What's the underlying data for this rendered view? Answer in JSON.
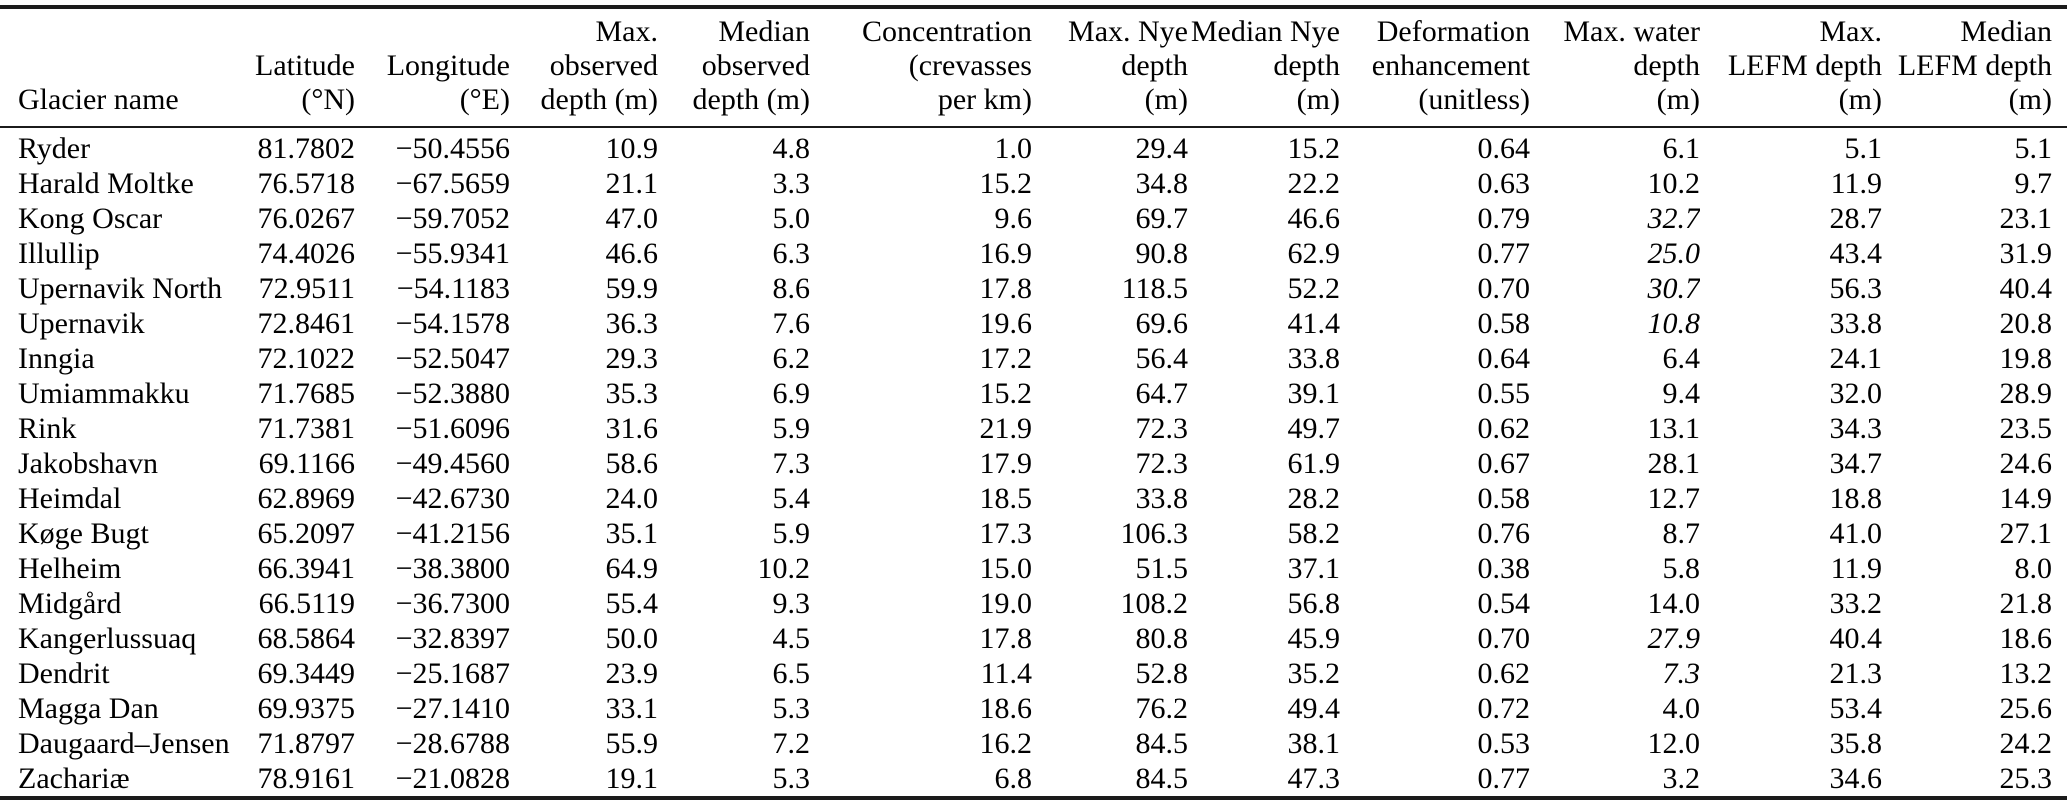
{
  "table": {
    "columns": [
      {
        "key": "name",
        "lines": [
          "Glacier name"
        ],
        "align": "left"
      },
      {
        "key": "lat",
        "lines": [
          "Latitude",
          "(°N)"
        ],
        "align": "right"
      },
      {
        "key": "lon",
        "lines": [
          "Longitude",
          "(°E)"
        ],
        "align": "right"
      },
      {
        "key": "max_obs",
        "lines": [
          "Max.",
          "observed",
          "depth (m)"
        ],
        "align": "right"
      },
      {
        "key": "med_obs",
        "lines": [
          "Median",
          "observed",
          "depth (m)"
        ],
        "align": "right"
      },
      {
        "key": "conc",
        "lines": [
          "Concentration",
          "(crevasses",
          "per km)"
        ],
        "align": "right"
      },
      {
        "key": "max_nye",
        "lines": [
          "Max. Nye",
          "depth",
          "(m)"
        ],
        "align": "right"
      },
      {
        "key": "med_nye",
        "lines": [
          "Median Nye",
          "depth",
          "(m)"
        ],
        "align": "right"
      },
      {
        "key": "def_enh",
        "lines": [
          "Deformation",
          "enhancement",
          "(unitless)"
        ],
        "align": "right"
      },
      {
        "key": "max_water",
        "lines": [
          "Max. water",
          "depth",
          "(m)"
        ],
        "align": "right"
      },
      {
        "key": "max_lefm",
        "lines": [
          "Max.",
          "LEFM depth",
          "(m)"
        ],
        "align": "right"
      },
      {
        "key": "med_lefm",
        "lines": [
          "Median",
          "LEFM depth",
          "(m)"
        ],
        "align": "right"
      }
    ],
    "rows": [
      {
        "name": "Ryder",
        "lat": "81.7802",
        "lon": "−50.4556",
        "max_obs": "10.9",
        "med_obs": "4.8",
        "conc": "1.0",
        "max_nye": "29.4",
        "med_nye": "15.2",
        "def_enh": "0.64",
        "max_water": "6.1",
        "max_lefm": "5.1",
        "med_lefm": "5.1",
        "water_italic": false
      },
      {
        "name": "Harald Moltke",
        "lat": "76.5718",
        "lon": "−67.5659",
        "max_obs": "21.1",
        "med_obs": "3.3",
        "conc": "15.2",
        "max_nye": "34.8",
        "med_nye": "22.2",
        "def_enh": "0.63",
        "max_water": "10.2",
        "max_lefm": "11.9",
        "med_lefm": "9.7",
        "water_italic": false
      },
      {
        "name": "Kong Oscar",
        "lat": "76.0267",
        "lon": "−59.7052",
        "max_obs": "47.0",
        "med_obs": "5.0",
        "conc": "9.6",
        "max_nye": "69.7",
        "med_nye": "46.6",
        "def_enh": "0.79",
        "max_water": "32.7",
        "max_lefm": "28.7",
        "med_lefm": "23.1",
        "water_italic": true
      },
      {
        "name": "Illullip",
        "lat": "74.4026",
        "lon": "−55.9341",
        "max_obs": "46.6",
        "med_obs": "6.3",
        "conc": "16.9",
        "max_nye": "90.8",
        "med_nye": "62.9",
        "def_enh": "0.77",
        "max_water": "25.0",
        "max_lefm": "43.4",
        "med_lefm": "31.9",
        "water_italic": true
      },
      {
        "name": "Upernavik North",
        "lat": "72.9511",
        "lon": "−54.1183",
        "max_obs": "59.9",
        "med_obs": "8.6",
        "conc": "17.8",
        "max_nye": "118.5",
        "med_nye": "52.2",
        "def_enh": "0.70",
        "max_water": "30.7",
        "max_lefm": "56.3",
        "med_lefm": "40.4",
        "water_italic": true
      },
      {
        "name": "Upernavik",
        "lat": "72.8461",
        "lon": "−54.1578",
        "max_obs": "36.3",
        "med_obs": "7.6",
        "conc": "19.6",
        "max_nye": "69.6",
        "med_nye": "41.4",
        "def_enh": "0.58",
        "max_water": "10.8",
        "max_lefm": "33.8",
        "med_lefm": "20.8",
        "water_italic": true
      },
      {
        "name": "Inngia",
        "lat": "72.1022",
        "lon": "−52.5047",
        "max_obs": "29.3",
        "med_obs": "6.2",
        "conc": "17.2",
        "max_nye": "56.4",
        "med_nye": "33.8",
        "def_enh": "0.64",
        "max_water": "6.4",
        "max_lefm": "24.1",
        "med_lefm": "19.8",
        "water_italic": false
      },
      {
        "name": "Umiammakku",
        "lat": "71.7685",
        "lon": "−52.3880",
        "max_obs": "35.3",
        "med_obs": "6.9",
        "conc": "15.2",
        "max_nye": "64.7",
        "med_nye": "39.1",
        "def_enh": "0.55",
        "max_water": "9.4",
        "max_lefm": "32.0",
        "med_lefm": "28.9",
        "water_italic": false
      },
      {
        "name": "Rink",
        "lat": "71.7381",
        "lon": "−51.6096",
        "max_obs": "31.6",
        "med_obs": "5.9",
        "conc": "21.9",
        "max_nye": "72.3",
        "med_nye": "49.7",
        "def_enh": "0.62",
        "max_water": "13.1",
        "max_lefm": "34.3",
        "med_lefm": "23.5",
        "water_italic": false
      },
      {
        "name": "Jakobshavn",
        "lat": "69.1166",
        "lon": "−49.4560",
        "max_obs": "58.6",
        "med_obs": "7.3",
        "conc": "17.9",
        "max_nye": "72.3",
        "med_nye": "61.9",
        "def_enh": "0.67",
        "max_water": "28.1",
        "max_lefm": "34.7",
        "med_lefm": "24.6",
        "water_italic": false
      },
      {
        "name": "Heimdal",
        "lat": "62.8969",
        "lon": "−42.6730",
        "max_obs": "24.0",
        "med_obs": "5.4",
        "conc": "18.5",
        "max_nye": "33.8",
        "med_nye": "28.2",
        "def_enh": "0.58",
        "max_water": "12.7",
        "max_lefm": "18.8",
        "med_lefm": "14.9",
        "water_italic": false
      },
      {
        "name": "Køge Bugt",
        "lat": "65.2097",
        "lon": "−41.2156",
        "max_obs": "35.1",
        "med_obs": "5.9",
        "conc": "17.3",
        "max_nye": "106.3",
        "med_nye": "58.2",
        "def_enh": "0.76",
        "max_water": "8.7",
        "max_lefm": "41.0",
        "med_lefm": "27.1",
        "water_italic": false
      },
      {
        "name": "Helheim",
        "lat": "66.3941",
        "lon": "−38.3800",
        "max_obs": "64.9",
        "med_obs": "10.2",
        "conc": "15.0",
        "max_nye": "51.5",
        "med_nye": "37.1",
        "def_enh": "0.38",
        "max_water": "5.8",
        "max_lefm": "11.9",
        "med_lefm": "8.0",
        "water_italic": false
      },
      {
        "name": "Midgård",
        "lat": "66.5119",
        "lon": "−36.7300",
        "max_obs": "55.4",
        "med_obs": "9.3",
        "conc": "19.0",
        "max_nye": "108.2",
        "med_nye": "56.8",
        "def_enh": "0.54",
        "max_water": "14.0",
        "max_lefm": "33.2",
        "med_lefm": "21.8",
        "water_italic": false
      },
      {
        "name": "Kangerlussuaq",
        "lat": "68.5864",
        "lon": "−32.8397",
        "max_obs": "50.0",
        "med_obs": "4.5",
        "conc": "17.8",
        "max_nye": "80.8",
        "med_nye": "45.9",
        "def_enh": "0.70",
        "max_water": "27.9",
        "max_lefm": "40.4",
        "med_lefm": "18.6",
        "water_italic": true
      },
      {
        "name": "Dendrit",
        "lat": "69.3449",
        "lon": "−25.1687",
        "max_obs": "23.9",
        "med_obs": "6.5",
        "conc": "11.4",
        "max_nye": "52.8",
        "med_nye": "35.2",
        "def_enh": "0.62",
        "max_water": "7.3",
        "max_lefm": "21.3",
        "med_lefm": "13.2",
        "water_italic": true
      },
      {
        "name": "Magga Dan",
        "lat": "69.9375",
        "lon": "−27.1410",
        "max_obs": "33.1",
        "med_obs": "5.3",
        "conc": "18.6",
        "max_nye": "76.2",
        "med_nye": "49.4",
        "def_enh": "0.72",
        "max_water": "4.0",
        "max_lefm": "53.4",
        "med_lefm": "25.6",
        "water_italic": false
      },
      {
        "name": "Daugaard–Jensen",
        "lat": "71.8797",
        "lon": "−28.6788",
        "max_obs": "55.9",
        "med_obs": "7.2",
        "conc": "16.2",
        "max_nye": "84.5",
        "med_nye": "38.1",
        "def_enh": "0.53",
        "max_water": "12.0",
        "max_lefm": "35.8",
        "med_lefm": "24.2",
        "water_italic": false
      },
      {
        "name": "Zachariæ",
        "lat": "78.9161",
        "lon": "−21.0828",
        "max_obs": "19.1",
        "med_obs": "5.3",
        "conc": "6.8",
        "max_nye": "84.5",
        "med_nye": "47.3",
        "def_enh": "0.77",
        "max_water": "3.2",
        "max_lefm": "34.6",
        "med_lefm": "25.3",
        "water_italic": false
      }
    ]
  },
  "colors": {
    "rule": "#1b1b1b",
    "text": "#000000",
    "background": "#ffffff"
  }
}
